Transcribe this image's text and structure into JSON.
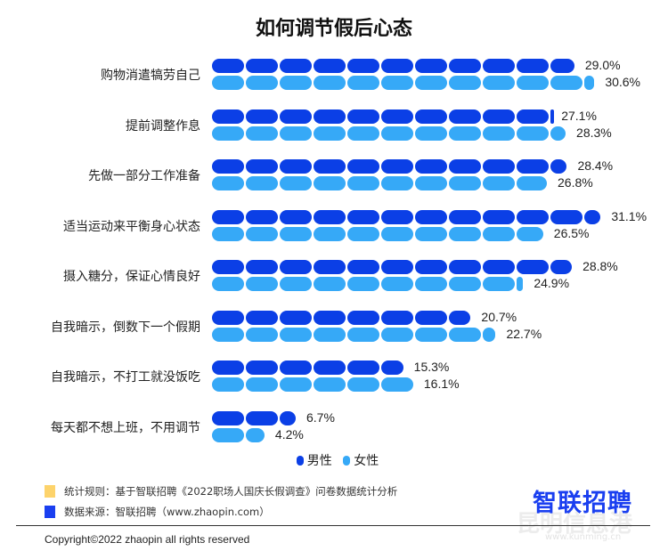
{
  "chart_data": {
    "type": "bar",
    "orientation": "horizontal",
    "title": "如何调节假后心态",
    "categories": [
      "购物消遣犒劳自己",
      "提前调整作息",
      "先做一部分工作准备",
      "适当运动来平衡身心状态",
      "摄入糖分，保证心情良好",
      "自我暗示，倒数下一个假期",
      "自我暗示，不打工就没饭吃",
      "每天都不想上班，不用调节"
    ],
    "series": [
      {
        "name": "男性",
        "color": "#0b3fe6",
        "values": [
          29.0,
          27.1,
          28.4,
          31.1,
          28.8,
          20.7,
          15.3,
          6.7
        ]
      },
      {
        "name": "女性",
        "color": "#36a9f7",
        "values": [
          30.6,
          28.3,
          26.8,
          26.5,
          24.9,
          22.7,
          16.1,
          4.2
        ]
      }
    ],
    "value_suffix": "%",
    "legend": "bottom"
  },
  "notes": [
    {
      "text": "统计规则：基于智联招聘《2022职场人国庆长假调查》问卷数据统计分析",
      "color": "#fdd36b"
    },
    {
      "text": "数据来源：智联招聘（www.zhaopin.com）",
      "color": "#1a3ff0"
    }
  ],
  "logo": "智联招聘",
  "watermark": "昆明信息港",
  "watermark_url": "www.kunming.cn",
  "copyright": "Copyright©2022 zhaopin all rights reserved"
}
